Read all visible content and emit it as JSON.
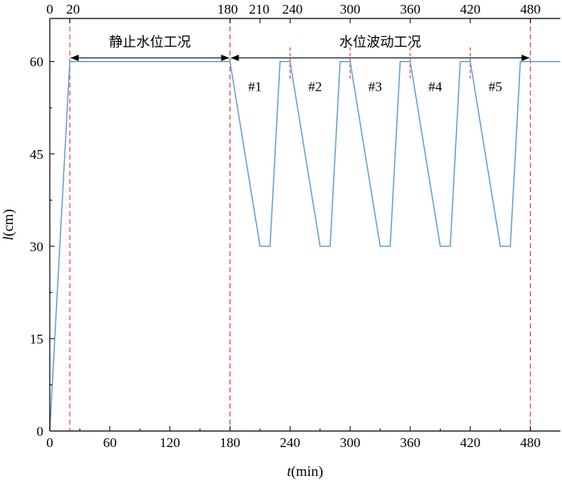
{
  "chart_data": {
    "type": "line",
    "xlabel_var": "t",
    "xlabel_unit": "(min)",
    "ylabel_var": "l",
    "ylabel_unit": "(cm)",
    "xlim": [
      0,
      510
    ],
    "ylim": [
      0,
      67
    ],
    "x_ticks_bottom": [
      0,
      60,
      120,
      180,
      240,
      300,
      360,
      420,
      480
    ],
    "y_ticks": [
      0,
      15,
      30,
      45,
      60
    ],
    "x_ticks_top": [
      0,
      20,
      180,
      210,
      240,
      300,
      360,
      420,
      480
    ],
    "x_ticks_top_labels": [
      "0",
      "20",
      "180",
      "210",
      "240",
      "300",
      "360",
      "420",
      "480"
    ],
    "grid": false,
    "colors": {
      "series": "#5b9bd5",
      "markers": "#e8453c",
      "axis": "#000000"
    },
    "series": [
      {
        "x": [
          0,
          20,
          180,
          210,
          220,
          230,
          240,
          270,
          280,
          290,
          300,
          330,
          340,
          350,
          360,
          390,
          400,
          410,
          420,
          450,
          460,
          470,
          480,
          510
        ],
        "y": [
          0,
          60,
          60,
          30,
          30,
          60,
          60,
          30,
          30,
          60,
          60,
          30,
          30,
          60,
          60,
          30,
          30,
          60,
          60,
          30,
          30,
          60,
          60,
          60
        ]
      }
    ],
    "marker_lines_full": [
      20,
      180,
      480
    ],
    "marker_lines_short": [
      240,
      300,
      360,
      420
    ],
    "annotations": {
      "stage1": {
        "label": "静止水位工况",
        "x_from": 20,
        "x_to": 180,
        "y": 60.6
      },
      "stage2": {
        "label": "水位波动工况",
        "x_from": 180,
        "x_to": 480,
        "y": 60.6
      }
    },
    "cases": [
      {
        "label": "#1",
        "x": 205,
        "y": 56
      },
      {
        "label": "#2",
        "x": 265,
        "y": 56
      },
      {
        "label": "#3",
        "x": 325,
        "y": 56
      },
      {
        "label": "#4",
        "x": 385,
        "y": 56
      },
      {
        "label": "#5",
        "x": 445,
        "y": 56
      }
    ]
  }
}
